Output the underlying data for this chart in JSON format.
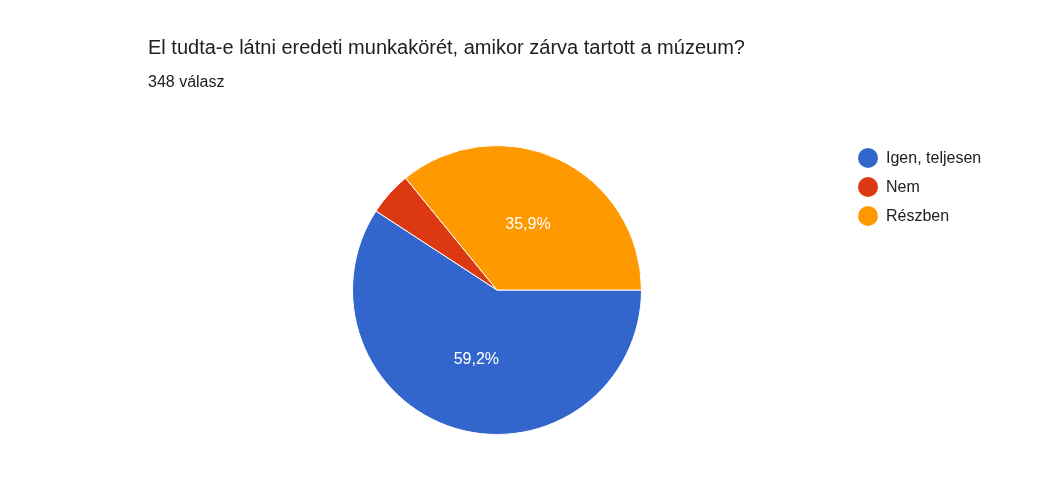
{
  "chart_data": {
    "type": "pie",
    "title": "El tudta-e látni eredeti munkakörét, amikor zárva tartott a múzeum?",
    "subtitle": "348 válasz",
    "categories": [
      "Igen, teljesen",
      "Nem",
      "Részben"
    ],
    "values": [
      59.2,
      4.9,
      35.9
    ],
    "colors": [
      "#3366cc",
      "#dc3912",
      "#ff9900"
    ],
    "value_labels": [
      "59,2%",
      null,
      "35,9%"
    ],
    "legend": "right"
  }
}
